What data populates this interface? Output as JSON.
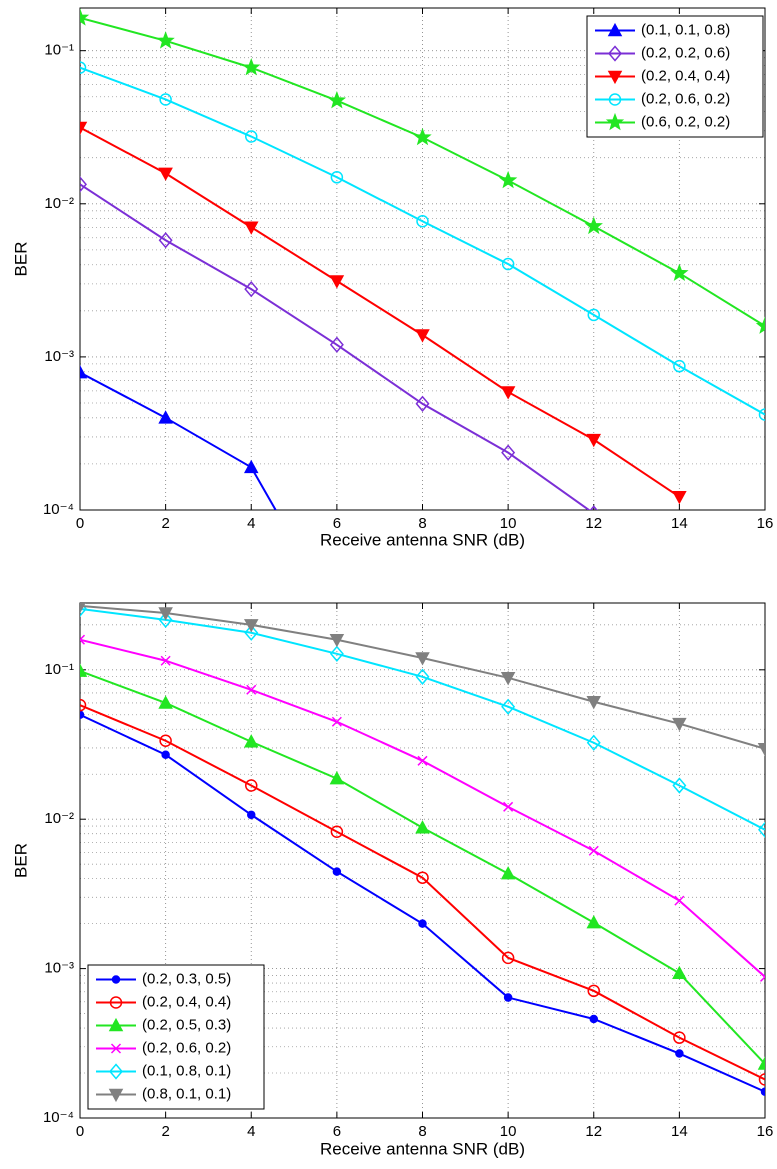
{
  "chart_data": [
    {
      "type": "line",
      "xlabel": "Receive antenna SNR (dB)",
      "ylabel": "BER",
      "x": [
        0,
        2,
        4,
        6,
        8,
        10,
        12,
        14,
        16
      ],
      "xlim": [
        0,
        16
      ],
      "xticks": [
        0,
        2,
        4,
        6,
        8,
        10,
        12,
        14,
        16
      ],
      "ylim": [
        0.0001,
        0.19
      ],
      "log_y": true,
      "yticks": [
        {
          "value": 0.0001,
          "label": "10⁻⁴"
        },
        {
          "value": 0.001,
          "label": "10⁻³"
        },
        {
          "value": 0.01,
          "label": "10⁻²"
        },
        {
          "value": 0.1,
          "label": "10⁻¹"
        }
      ],
      "grid": true,
      "legend": "upper right",
      "series": [
        {
          "name": "(0.1, 0.1, 0.8)",
          "color": "#0000ff",
          "marker": "triangle-up",
          "values": [
            0.00079,
            0.0004,
            0.00019,
            2e-05,
            null,
            null,
            null,
            null,
            null
          ]
        },
        {
          "name": "(0.2, 0.2, 0.6)",
          "color": "#7b2fd6",
          "marker": "diamond",
          "values": [
            0.0134,
            0.00578,
            0.00277,
            0.0012,
            0.000494,
            0.000237,
            9.5e-05,
            null,
            null
          ]
        },
        {
          "name": "(0.2, 0.4, 0.4)",
          "color": "#ff0000",
          "marker": "triangle-down",
          "values": [
            0.0315,
            0.0158,
            0.00703,
            0.00313,
            0.00139,
            0.00059,
            0.000288,
            0.000122,
            null
          ]
        },
        {
          "name": "(0.2, 0.6, 0.2)",
          "color": "#00e5ff",
          "marker": "circle",
          "values": [
            0.0775,
            0.048,
            0.0275,
            0.0149,
            0.00769,
            0.00404,
            0.00188,
            0.00087,
            0.00042
          ]
        },
        {
          "name": "(0.6, 0.2, 0.2)",
          "color": "#22e622",
          "marker": "star",
          "values": [
            0.164,
            0.116,
            0.0775,
            0.0472,
            0.0271,
            0.0142,
            0.00713,
            0.00352,
            0.00159
          ]
        }
      ]
    },
    {
      "type": "line",
      "xlabel": "Receive antenna SNR (dB)",
      "ylabel": "BER",
      "x": [
        0,
        2,
        4,
        6,
        8,
        10,
        12,
        14,
        16
      ],
      "xlim": [
        0,
        16
      ],
      "xticks": [
        0,
        2,
        4,
        6,
        8,
        10,
        12,
        14,
        16
      ],
      "ylim": [
        0.0001,
        0.28
      ],
      "log_y": true,
      "yticks": [
        {
          "value": 0.0001,
          "label": "10⁻⁴"
        },
        {
          "value": 0.001,
          "label": "10⁻³"
        },
        {
          "value": 0.01,
          "label": "10⁻²"
        },
        {
          "value": 0.1,
          "label": "10⁻¹"
        }
      ],
      "grid": true,
      "legend": "lower left",
      "series": [
        {
          "name": "(0.2, 0.3, 0.5)",
          "color": "#0000ff",
          "marker": "dot",
          "values": [
            0.05,
            0.027,
            0.0107,
            0.00446,
            0.002,
            0.00064,
            0.00046,
            0.00027,
            0.00015
          ]
        },
        {
          "name": "(0.2, 0.4, 0.4)",
          "color": "#ff0000",
          "marker": "circle",
          "values": [
            0.058,
            0.0335,
            0.0168,
            0.00824,
            0.00406,
            0.00118,
            0.00071,
            0.000345,
            0.000181
          ]
        },
        {
          "name": "(0.2, 0.5, 0.3)",
          "color": "#22e622",
          "marker": "triangle-up",
          "values": [
            0.098,
            0.06,
            0.033,
            0.0187,
            0.00877,
            0.00432,
            0.00203,
            0.00093,
            0.00023
          ]
        },
        {
          "name": "(0.2, 0.6, 0.2)",
          "color": "#ff00ff",
          "marker": "x",
          "values": [
            0.159,
            0.115,
            0.0735,
            0.0449,
            0.0246,
            0.0121,
            0.00615,
            0.00285,
            0.00088
          ]
        },
        {
          "name": "(0.1, 0.8, 0.1)",
          "color": "#00e5ff",
          "marker": "diamond",
          "values": [
            0.256,
            0.216,
            0.177,
            0.128,
            0.0898,
            0.0566,
            0.0325,
            0.0168,
            0.0085
          ]
        },
        {
          "name": "(0.8, 0.1, 0.1)",
          "color": "#808080",
          "marker": "triangle-down",
          "values": [
            0.268,
            0.24,
            0.2,
            0.159,
            0.12,
            0.0884,
            0.0611,
            0.0436,
            0.0296
          ]
        }
      ]
    }
  ]
}
